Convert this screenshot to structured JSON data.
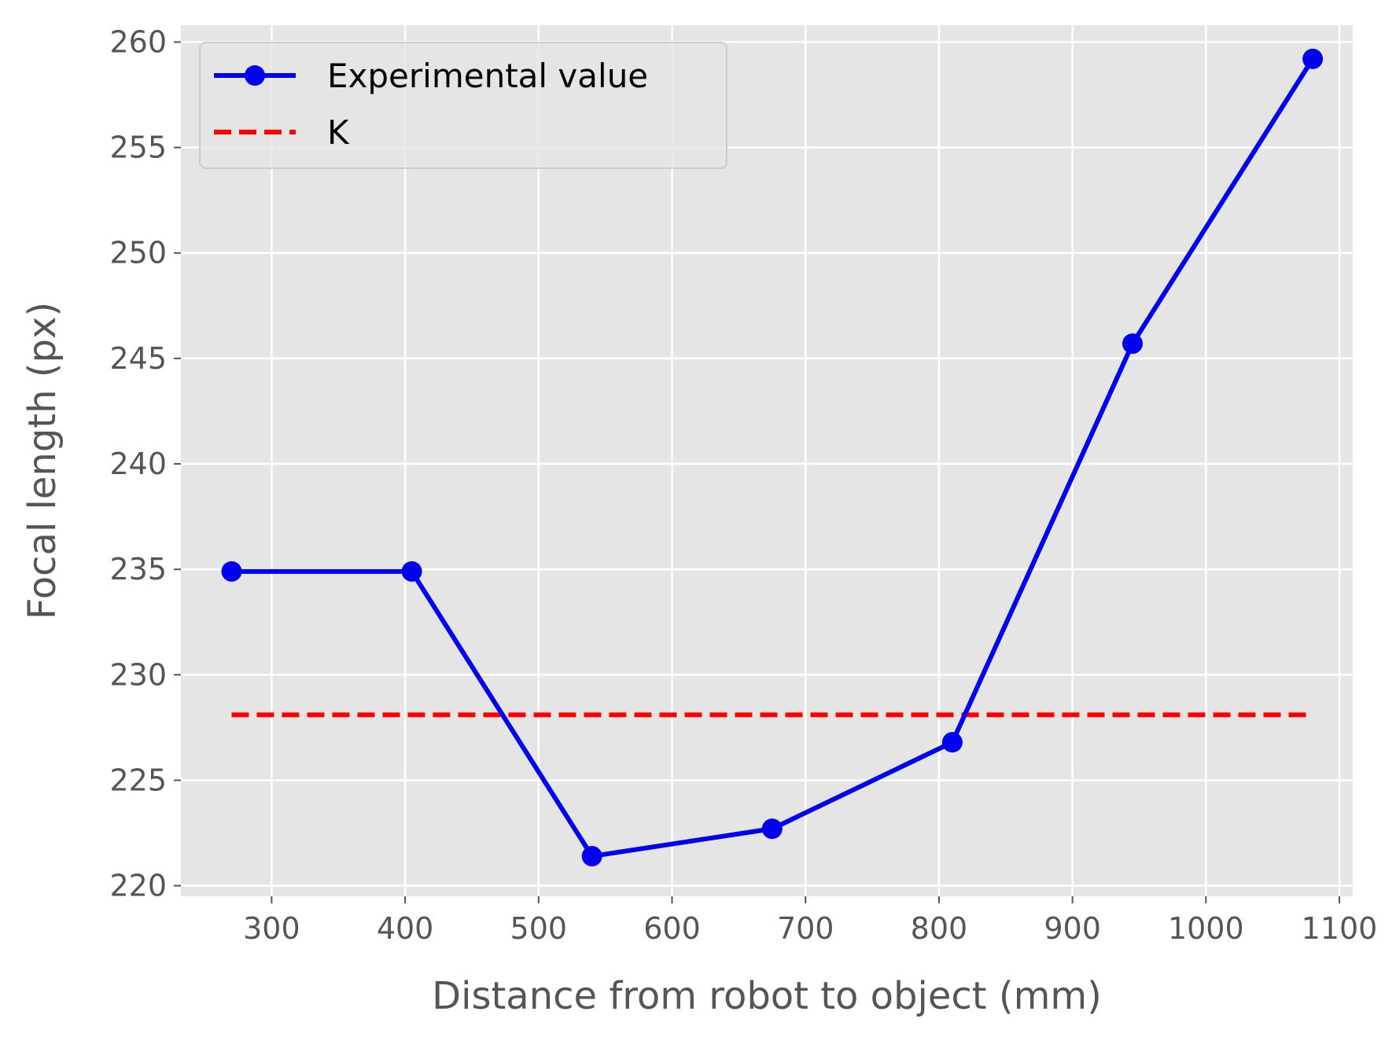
{
  "chart_data": {
    "type": "line",
    "title": "",
    "xlabel": "Distance from robot to object (mm)",
    "ylabel": "Focal length (px)",
    "xlim": [
      232,
      1110
    ],
    "ylim": [
      219.5,
      260.8
    ],
    "xticks": [
      300,
      400,
      500,
      600,
      700,
      800,
      900,
      1000,
      1100
    ],
    "yticks": [
      220,
      225,
      230,
      235,
      240,
      245,
      250,
      255,
      260
    ],
    "grid": true,
    "legend_position": "top-left",
    "series": [
      {
        "name": "Experimental value",
        "style": "solid-with-markers",
        "color": "#0000ee",
        "x": [
          270,
          405,
          540,
          675,
          810,
          945,
          1080
        ],
        "y": [
          234.9,
          234.9,
          221.4,
          222.7,
          226.8,
          245.7,
          259.2
        ]
      },
      {
        "name": "K",
        "style": "dashed",
        "color": "#ff0000",
        "x": [
          270,
          1080
        ],
        "y": [
          228.1,
          228.1
        ]
      }
    ],
    "colors": {
      "plot_background": "#e5e5e5",
      "grid": "#ffffff",
      "tick_text": "#555555"
    }
  }
}
